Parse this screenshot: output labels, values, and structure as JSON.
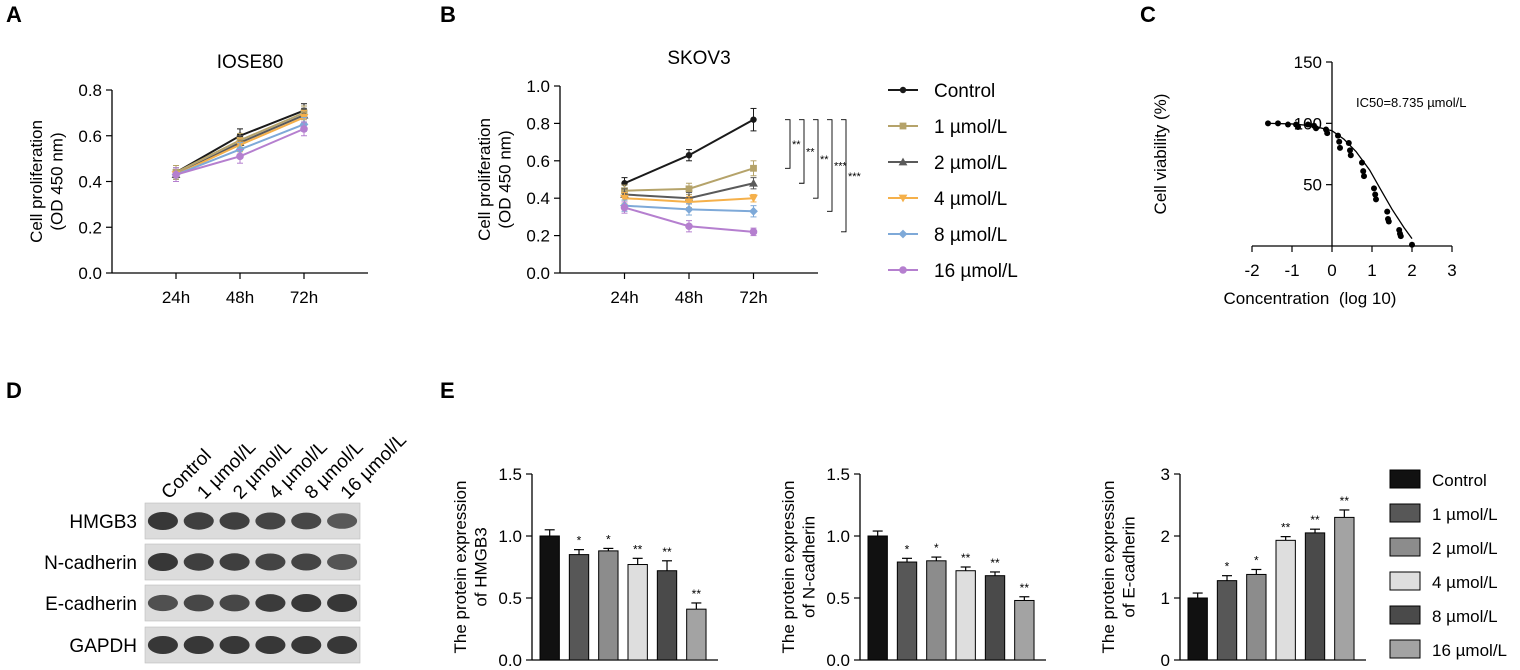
{
  "panel_letters": [
    "A",
    "B",
    "C",
    "D",
    "E"
  ],
  "chart_data": [
    {
      "panel": "A",
      "type": "line",
      "title": "IOSE80",
      "ylabel": [
        "Cell proliferation",
        "(OD 450 nm)"
      ],
      "xlabel": "",
      "categories": [
        "24h",
        "48h",
        "72h"
      ],
      "ylim": [
        0,
        0.8
      ],
      "yticks": [
        "0.0",
        "0.2",
        "0.4",
        "0.6",
        "0.8"
      ],
      "series": [
        {
          "name": "Control",
          "values": [
            0.44,
            0.6,
            0.71
          ],
          "err": [
            0.03,
            0.03,
            0.03
          ],
          "color": "#1a1a1a"
        },
        {
          "name": "1 µmol/L",
          "values": [
            0.44,
            0.58,
            0.7
          ],
          "err": [
            0.03,
            0.03,
            0.03
          ],
          "color": "#b5a36a"
        },
        {
          "name": "2 µmol/L",
          "values": [
            0.43,
            0.57,
            0.69
          ],
          "err": [
            0.03,
            0.03,
            0.03
          ],
          "color": "#5a5a5a"
        },
        {
          "name": "4 µmol/L",
          "values": [
            0.43,
            0.56,
            0.68
          ],
          "err": [
            0.03,
            0.03,
            0.03
          ],
          "color": "#f5b04a"
        },
        {
          "name": "8 µmol/L",
          "values": [
            0.43,
            0.54,
            0.65
          ],
          "err": [
            0.03,
            0.03,
            0.03
          ],
          "color": "#7ea9d8"
        },
        {
          "name": "16 µmol/L",
          "values": [
            0.43,
            0.51,
            0.63
          ],
          "err": [
            0.03,
            0.03,
            0.03
          ],
          "color": "#b57fcf"
        }
      ]
    },
    {
      "panel": "B",
      "type": "line",
      "title": "SKOV3",
      "ylabel": [
        "Cell proliferation",
        "(OD 450 nm)"
      ],
      "xlabel": "",
      "categories": [
        "24h",
        "48h",
        "72h"
      ],
      "ylim": [
        0,
        1.0
      ],
      "yticks": [
        "0.0",
        "0.2",
        "0.4",
        "0.6",
        "0.8",
        "1.0"
      ],
      "significance": [
        "**",
        "**",
        "**",
        "***",
        "***"
      ],
      "series": [
        {
          "name": "Control",
          "values": [
            0.48,
            0.63,
            0.82
          ],
          "err": [
            0.03,
            0.03,
            0.06
          ],
          "color": "#1a1a1a"
        },
        {
          "name": "1 µmol/L",
          "values": [
            0.44,
            0.45,
            0.56
          ],
          "err": [
            0.03,
            0.03,
            0.04
          ],
          "color": "#b5a36a"
        },
        {
          "name": "2 µmol/L",
          "values": [
            0.42,
            0.4,
            0.48
          ],
          "err": [
            0.03,
            0.03,
            0.03
          ],
          "color": "#5a5a5a"
        },
        {
          "name": "4 µmol/L",
          "values": [
            0.4,
            0.38,
            0.4
          ],
          "err": [
            0.03,
            0.03,
            0.02
          ],
          "color": "#f5b04a"
        },
        {
          "name": "8 µmol/L",
          "values": [
            0.36,
            0.34,
            0.33
          ],
          "err": [
            0.03,
            0.03,
            0.03
          ],
          "color": "#7ea9d8"
        },
        {
          "name": "16 µmol/L",
          "values": [
            0.35,
            0.25,
            0.22
          ],
          "err": [
            0.03,
            0.03,
            0.02
          ],
          "color": "#b57fcf"
        }
      ]
    },
    {
      "panel": "C",
      "type": "scatter",
      "ylabel": "Cell viability (%)",
      "xlabel": "Concentration  (log 10)",
      "annotation": "IC50=8.735 µmol/L",
      "xlim": [
        -2,
        3
      ],
      "ylim": [
        0,
        150
      ],
      "xticks": [
        "-2",
        "-1",
        "0",
        "1",
        "2",
        "3"
      ],
      "yticks": [
        "50",
        "100",
        "150"
      ],
      "points": [
        [
          -1.6,
          100
        ],
        [
          -1.35,
          100
        ],
        [
          -1.1,
          99
        ],
        [
          -0.9,
          99
        ],
        [
          -0.85,
          97
        ],
        [
          -0.6,
          99
        ],
        [
          -0.45,
          98
        ],
        [
          -0.4,
          96
        ],
        [
          -0.15,
          95
        ],
        [
          -0.12,
          92
        ],
        [
          0.15,
          90
        ],
        [
          0.18,
          85
        ],
        [
          0.2,
          80
        ],
        [
          0.42,
          84
        ],
        [
          0.45,
          78
        ],
        [
          0.47,
          74
        ],
        [
          0.75,
          68
        ],
        [
          0.78,
          61
        ],
        [
          0.8,
          57
        ],
        [
          1.05,
          47
        ],
        [
          1.08,
          42
        ],
        [
          1.1,
          38
        ],
        [
          1.38,
          28
        ],
        [
          1.4,
          22
        ],
        [
          1.42,
          20
        ],
        [
          1.68,
          13
        ],
        [
          1.7,
          10
        ],
        [
          1.72,
          8
        ],
        [
          2.0,
          1
        ]
      ],
      "fit": [
        [
          -1.6,
          100
        ],
        [
          -1.0,
          99.5
        ],
        [
          -0.5,
          98
        ],
        [
          0.0,
          94
        ],
        [
          0.3,
          87
        ],
        [
          0.6,
          77
        ],
        [
          0.94,
          62
        ],
        [
          1.2,
          47
        ],
        [
          1.5,
          30
        ],
        [
          1.8,
          15
        ],
        [
          2.0,
          6
        ]
      ]
    },
    {
      "panel": "E1",
      "type": "bar",
      "ylabel": [
        "The protein expression",
        "of HMGB3"
      ],
      "categories": [
        "Control",
        "1 µmol/L",
        "2 µmol/L",
        "4 µmol/L",
        "8 µmol/L",
        "16 µmol/L"
      ],
      "values": [
        1.0,
        0.85,
        0.88,
        0.77,
        0.72,
        0.41
      ],
      "err": [
        0.05,
        0.04,
        0.02,
        0.05,
        0.08,
        0.05
      ],
      "significance": [
        "",
        "*",
        "*",
        "**",
        "**",
        "**"
      ],
      "ylim": [
        0,
        1.5
      ],
      "yticks": [
        "0.0",
        "0.5",
        "1.0",
        "1.5"
      ]
    },
    {
      "panel": "E2",
      "type": "bar",
      "ylabel": [
        "The protein expression",
        "of N-cadherin"
      ],
      "categories": [
        "Control",
        "1 µmol/L",
        "2 µmol/L",
        "4 µmol/L",
        "8 µmol/L",
        "16 µmol/L"
      ],
      "values": [
        1.0,
        0.79,
        0.8,
        0.72,
        0.68,
        0.48
      ],
      "err": [
        0.04,
        0.03,
        0.03,
        0.03,
        0.03,
        0.03
      ],
      "significance": [
        "",
        "*",
        "*",
        "**",
        "**",
        "**"
      ],
      "ylim": [
        0,
        1.5
      ],
      "yticks": [
        "0.0",
        "0.5",
        "1.0",
        "1.5"
      ]
    },
    {
      "panel": "E3",
      "type": "bar",
      "ylabel": [
        "The protein expression",
        "of E-cadherin"
      ],
      "categories": [
        "Control",
        "1 µmol/L",
        "2 µmol/L",
        "4 µmol/L",
        "8 µmol/L",
        "16 µmol/L"
      ],
      "values": [
        1.0,
        1.28,
        1.38,
        1.93,
        2.05,
        2.3
      ],
      "err": [
        0.08,
        0.08,
        0.08,
        0.06,
        0.06,
        0.12
      ],
      "significance": [
        "",
        "*",
        "*",
        "**",
        "**",
        "**"
      ],
      "ylim": [
        0,
        3
      ],
      "yticks": [
        "0",
        "1",
        "2",
        "3"
      ],
      "legend": [
        {
          "name": "Control",
          "color": "#111111"
        },
        {
          "name": "1 µmol/L",
          "color": "#575757"
        },
        {
          "name": "2 µmol/L",
          "color": "#8c8c8c"
        },
        {
          "name": "4 µmol/L",
          "color": "#dedede"
        },
        {
          "name": "8 µmol/L",
          "color": "#4a4a4a"
        },
        {
          "name": "16 µmol/L",
          "color": "#a3a3a3"
        }
      ]
    }
  ],
  "western_blot": {
    "panel": "D",
    "lanes": [
      "Control",
      "1 µmol/L",
      "2 µmol/L",
      "4 µmol/L",
      "8 µmol/L",
      "16 µmol/L"
    ],
    "proteins": [
      "HMGB3",
      "N-cadherin",
      "E-cadherin",
      "GAPDH"
    ],
    "intensity": [
      [
        1.0,
        0.9,
        0.9,
        0.85,
        0.8,
        0.6
      ],
      [
        1.0,
        0.9,
        0.9,
        0.85,
        0.85,
        0.65
      ],
      [
        0.7,
        0.8,
        0.8,
        0.95,
        1.0,
        1.0
      ],
      [
        1.0,
        1.0,
        1.0,
        1.0,
        1.0,
        1.0
      ]
    ]
  }
}
